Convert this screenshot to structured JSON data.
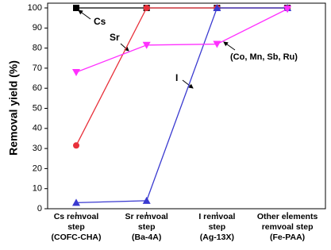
{
  "chart_data": {
    "type": "line",
    "y_label": "Removal yield (%)",
    "categories": [
      "Cs remvoal\nstep\n(COFC-CHA)",
      "Sr remvoal\nstep\n(Ba-4A)",
      "I remvoal\nstep\n(Ag-13X)",
      "Other elements\nremvoal step\n(Fe-PAA)"
    ],
    "series": [
      {
        "name": "Cs",
        "color": "#000000",
        "marker": "square",
        "values": [
          100,
          100,
          100,
          100
        ]
      },
      {
        "name": "Sr",
        "color": "#e8303a",
        "marker": "circle",
        "values": [
          31.5,
          100,
          100,
          100
        ]
      },
      {
        "name": "I",
        "color": "#3a3ad0",
        "marker": "triangle-up",
        "values": [
          3,
          4,
          100,
          100
        ]
      },
      {
        "name": "(Co, Mn, Sb, Ru)",
        "color": "#ff30ff",
        "marker": "triangle-down",
        "values": [
          68,
          81.5,
          82,
          99.5
        ]
      }
    ],
    "ylim": [
      0,
      100
    ],
    "yticks": [
      0,
      10,
      20,
      30,
      40,
      50,
      60,
      70,
      80,
      90,
      100
    ]
  }
}
